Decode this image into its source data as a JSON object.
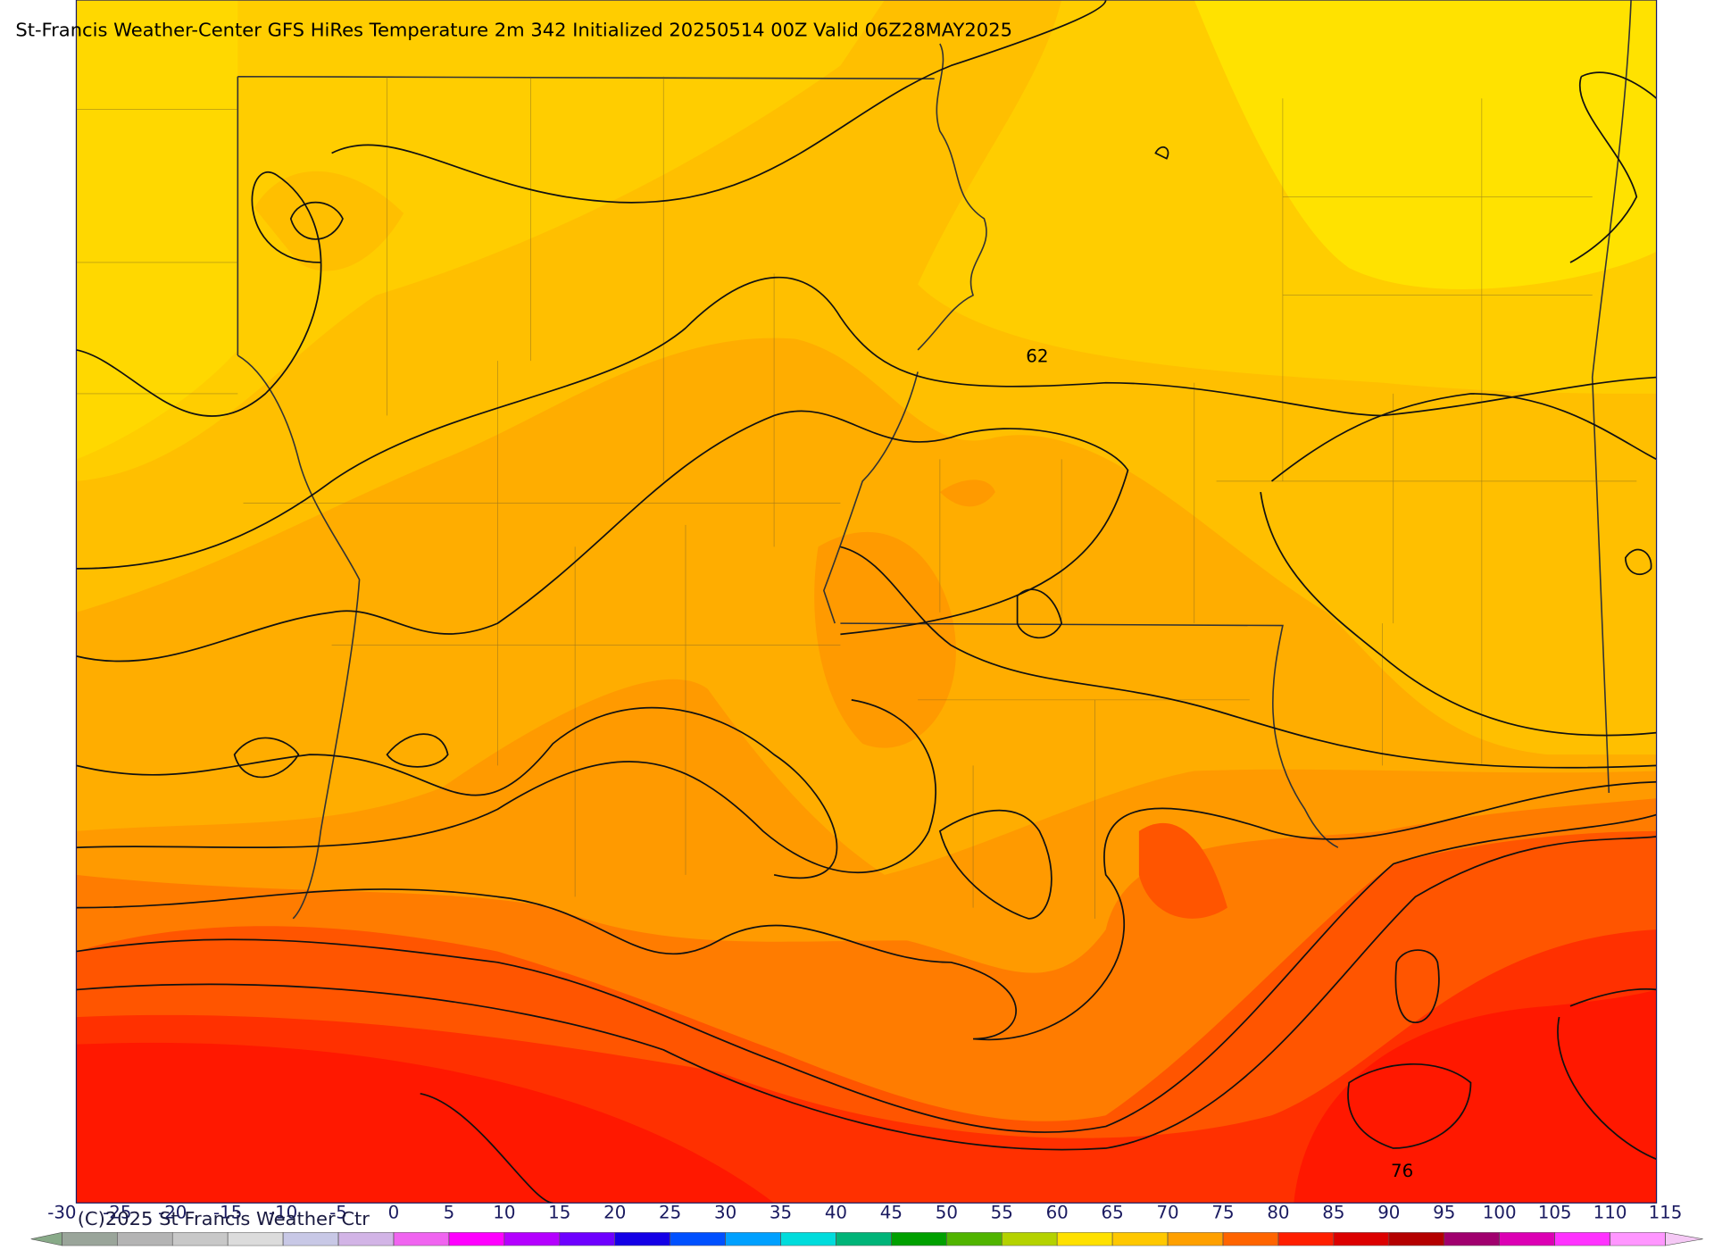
{
  "title": "St-Francis Weather-Center GFS HiRes Temperature 2m  342 Initialized 20250514 00Z Valid 06Z28MAY2025",
  "contour_labels": [
    "62",
    "76"
  ],
  "copyright": "(C)2025 St Francis Weather Ctr",
  "colorbar": {
    "ticks": [
      -30,
      -25,
      -20,
      -15,
      -10,
      -5,
      0,
      5,
      10,
      15,
      20,
      25,
      30,
      35,
      40,
      45,
      50,
      55,
      60,
      65,
      70,
      75,
      80,
      85,
      90,
      95,
      100,
      105,
      110,
      115
    ],
    "colors": [
      "#9aa59a",
      "#b4b4b4",
      "#c8c8c8",
      "#dcdcdc",
      "#c8c8e6",
      "#d2b4e6",
      "#f064f0",
      "#ff00ff",
      "#b400ff",
      "#6e00ff",
      "#1400e6",
      "#0050ff",
      "#00a0ff",
      "#00dcdc",
      "#00b478",
      "#00a000",
      "#50b400",
      "#b4d200",
      "#ffe100",
      "#ffc800",
      "#ffa000",
      "#ff6400",
      "#ff1e00",
      "#dc0000",
      "#b40000",
      "#a0006e",
      "#dc00b4",
      "#ff32ff",
      "#ff96ff"
    ],
    "under_color": "#88aa88",
    "over_color": "#f5c8f5"
  }
}
